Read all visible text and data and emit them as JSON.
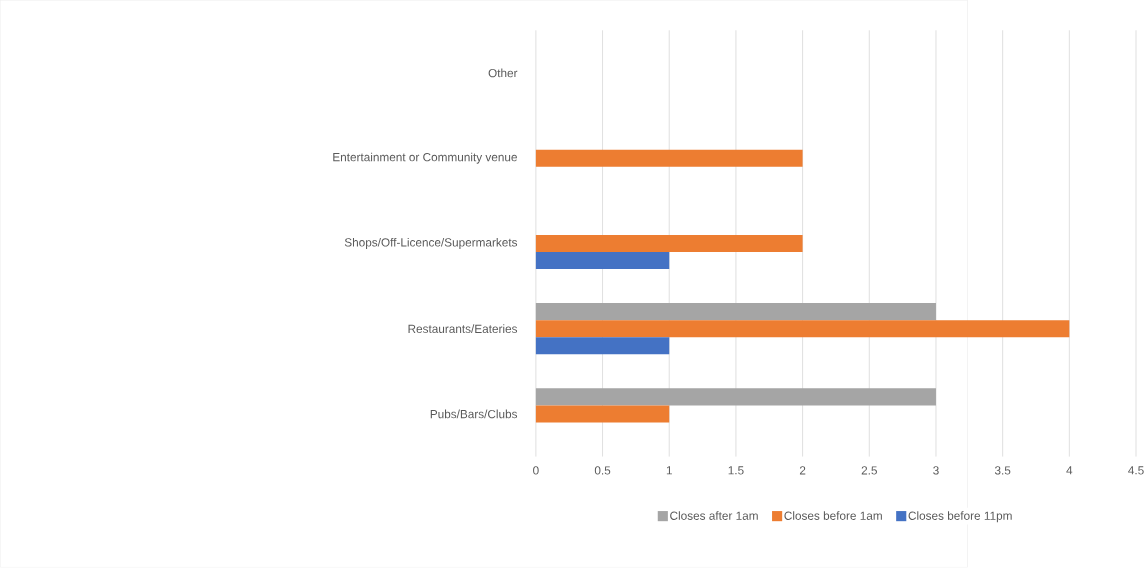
{
  "chart_data": {
    "type": "bar",
    "orientation": "horizontal",
    "categories": [
      "Other",
      "Entertainment or Community venue",
      "Shops/Off-Licence/Supermarkets",
      "Restaurants/Eateries",
      "Pubs/Bars/Clubs"
    ],
    "series": [
      {
        "name": "Closes after 1am",
        "color": "#a5a5a5",
        "values": [
          null,
          null,
          null,
          3,
          3
        ]
      },
      {
        "name": "Closes before 1am",
        "color": "#ed7d31",
        "values": [
          null,
          2,
          2,
          4,
          1
        ]
      },
      {
        "name": "Closes before 11pm",
        "color": "#4472c4",
        "values": [
          null,
          null,
          1,
          1,
          null
        ]
      }
    ],
    "xlim": [
      0,
      4.5
    ],
    "xticks": [
      0,
      0.5,
      1,
      1.5,
      2,
      2.5,
      3,
      3.5,
      4,
      4.5
    ],
    "grid": "x",
    "legend": "bottom"
  }
}
